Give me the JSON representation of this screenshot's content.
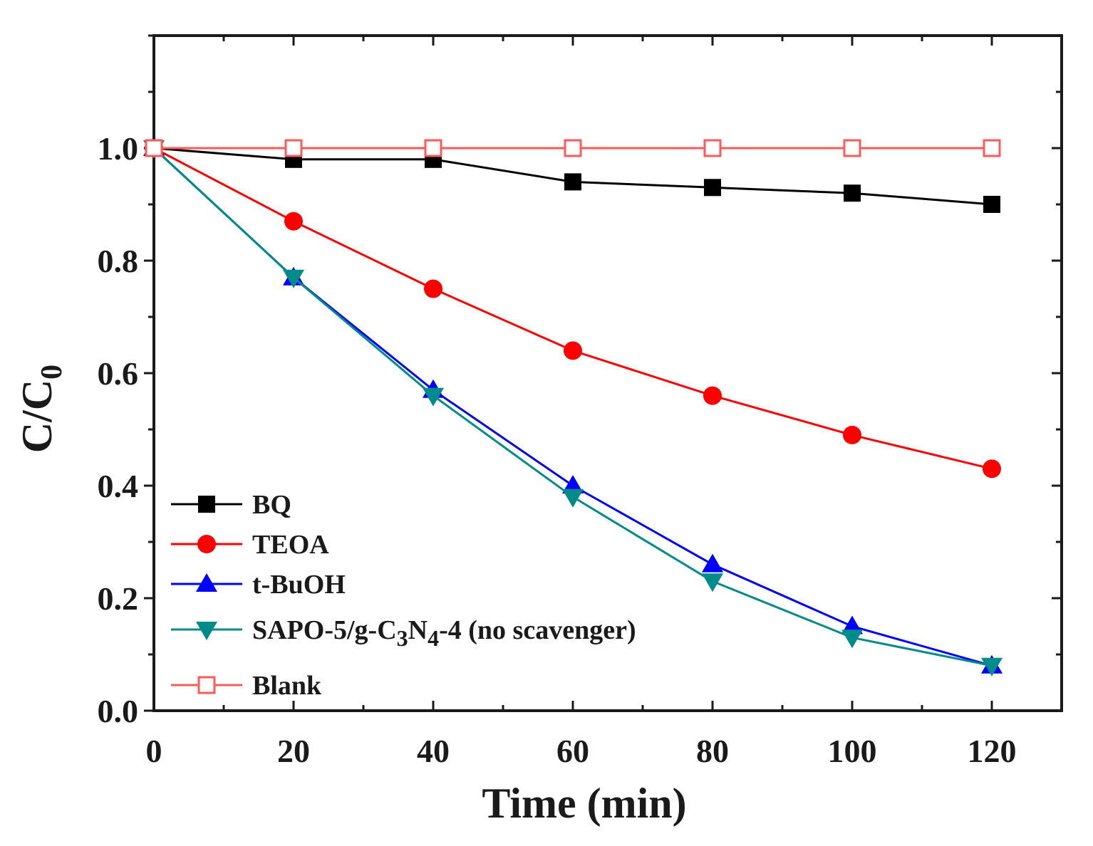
{
  "chart_data": {
    "type": "line",
    "xlabel": "Time (min)",
    "ylabel_main": "C/C",
    "ylabel_sub": "0",
    "xlim": [
      0,
      130
    ],
    "ylim": [
      0,
      1.2
    ],
    "x_ticks": [
      0,
      20,
      40,
      60,
      80,
      100,
      120
    ],
    "x_tick_labels": [
      "0",
      "20",
      "40",
      "60",
      "80",
      "100",
      "120"
    ],
    "y_ticks": [
      0.0,
      0.2,
      0.4,
      0.6,
      0.8,
      1.0
    ],
    "y_tick_labels": [
      "0.0",
      "0.2",
      "0.4",
      "0.6",
      "0.8",
      "1.0"
    ],
    "grid": false,
    "legend_position": "bottom-left",
    "x": [
      0,
      20,
      40,
      60,
      80,
      100,
      120
    ],
    "series": [
      {
        "key": "bq",
        "name": "BQ",
        "name_parts": [
          {
            "t": "BQ"
          }
        ],
        "color": "#000000",
        "marker": "square",
        "values": [
          1.0,
          0.98,
          0.98,
          0.94,
          0.93,
          0.92,
          0.9
        ]
      },
      {
        "key": "teoa",
        "name": "TEOA",
        "name_parts": [
          {
            "t": "TEOA"
          }
        ],
        "color": "#ff0000",
        "marker": "circle",
        "values": [
          1.0,
          0.87,
          0.75,
          0.64,
          0.56,
          0.49,
          0.43
        ]
      },
      {
        "key": "tbuoh",
        "name": "t-BuOH",
        "name_parts": [
          {
            "t": "t-BuOH"
          }
        ],
        "color": "#0000ff",
        "marker": "triangle-up",
        "values": [
          1.0,
          0.77,
          0.57,
          0.4,
          0.26,
          0.15,
          0.08
        ]
      },
      {
        "key": "sapo",
        "name": "SAPO-5/g-C3N4-4 (no scavenger)",
        "name_parts": [
          {
            "t": "SAPO-5/g-C"
          },
          {
            "t": "3",
            "sub": true
          },
          {
            "t": "N"
          },
          {
            "t": "4",
            "sub": true
          },
          {
            "t": "-4 (no scavenger)"
          }
        ],
        "color": "#008b8b",
        "marker": "triangle-down",
        "values": [
          1.0,
          0.77,
          0.56,
          0.38,
          0.23,
          0.13,
          0.08
        ]
      },
      {
        "key": "blank",
        "name": "Blank",
        "name_parts": [
          {
            "t": "Blank"
          }
        ],
        "color": "#ff5a5a",
        "marker": "square-open",
        "values": [
          1.0,
          1.0,
          1.0,
          1.0,
          1.0,
          1.0,
          1.0
        ]
      }
    ]
  }
}
